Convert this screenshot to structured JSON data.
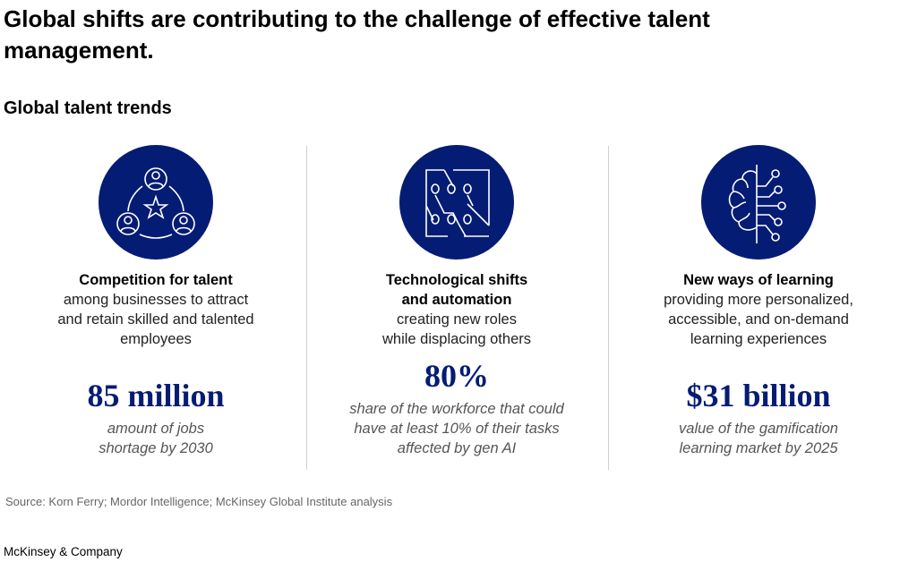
{
  "title": "Global shifts are contributing to the challenge of effective talent management.",
  "subtitle": "Global talent trends",
  "colors": {
    "accent": "#051C74",
    "divider": "#cfcfcf"
  },
  "trends": [
    {
      "icon": "people-network-star-icon",
      "heading": "Competition for talent",
      "description": "among businesses to attract and retain skilled and talented employees",
      "stat": "85 million",
      "stat_description": "amount of jobs shortage by 2030"
    },
    {
      "icon": "circuit-board-icon",
      "heading": "Technological shifts and automation",
      "description": "creating new roles while displacing others",
      "stat": "80%",
      "stat_description": "share of the workforce that could have at least 10% of their tasks affected by gen AI"
    },
    {
      "icon": "brain-circuit-icon",
      "heading": "New ways of learning",
      "description": "providing more personalized, accessible, and on-demand learning experiences",
      "stat": "$31 billion",
      "stat_description": "value of the gamification learning market by 2025"
    }
  ],
  "source": "Source: Korn Ferry; Mordor Intelligence; McKinsey Global Institute analysis",
  "footer": "McKinsey & Company"
}
